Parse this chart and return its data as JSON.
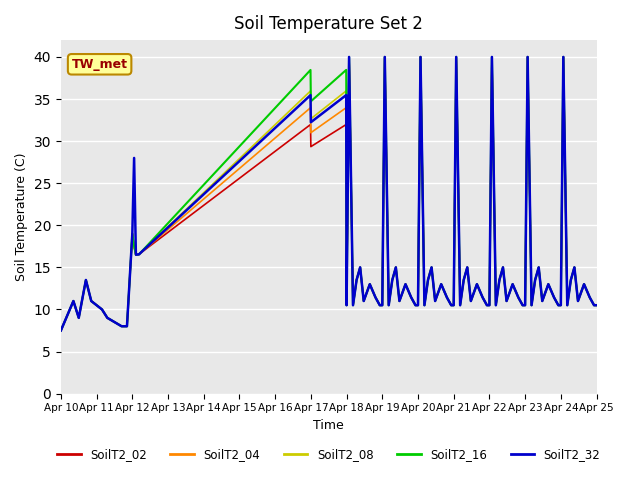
{
  "title": "Soil Temperature Set 2",
  "xlabel": "Time",
  "ylabel": "Soil Temperature (C)",
  "ylim": [
    0,
    42
  ],
  "yticks": [
    0,
    5,
    10,
    15,
    20,
    25,
    30,
    35,
    40
  ],
  "bg_color": "#e8e8e8",
  "annotation_text": "TW_met",
  "annotation_bg": "#ffff99",
  "annotation_border": "#bb8800",
  "annotation_fg": "#990000",
  "series_colors": [
    "#cc0000",
    "#ff8800",
    "#cccc00",
    "#00cc00",
    "#0000cc"
  ],
  "series_names": [
    "SoilT2_02",
    "SoilT2_04",
    "SoilT2_08",
    "SoilT2_16",
    "SoilT2_32"
  ],
  "series_lw": [
    1.2,
    1.2,
    1.2,
    1.5,
    1.8
  ],
  "ramp_ends": [
    32,
    34,
    36,
    38.5,
    35.5
  ],
  "x_tick_labels": [
    "Apr 10",
    "Apr 11",
    "Apr 12",
    "Apr 13",
    "Apr 14",
    "Apr 15",
    "Apr 16",
    "Apr 17",
    "Apr 18",
    "Apr 19",
    "Apr 20",
    "Apr 21",
    "Apr 22",
    "Apr 23",
    "Apr 24",
    "Apr 25"
  ]
}
